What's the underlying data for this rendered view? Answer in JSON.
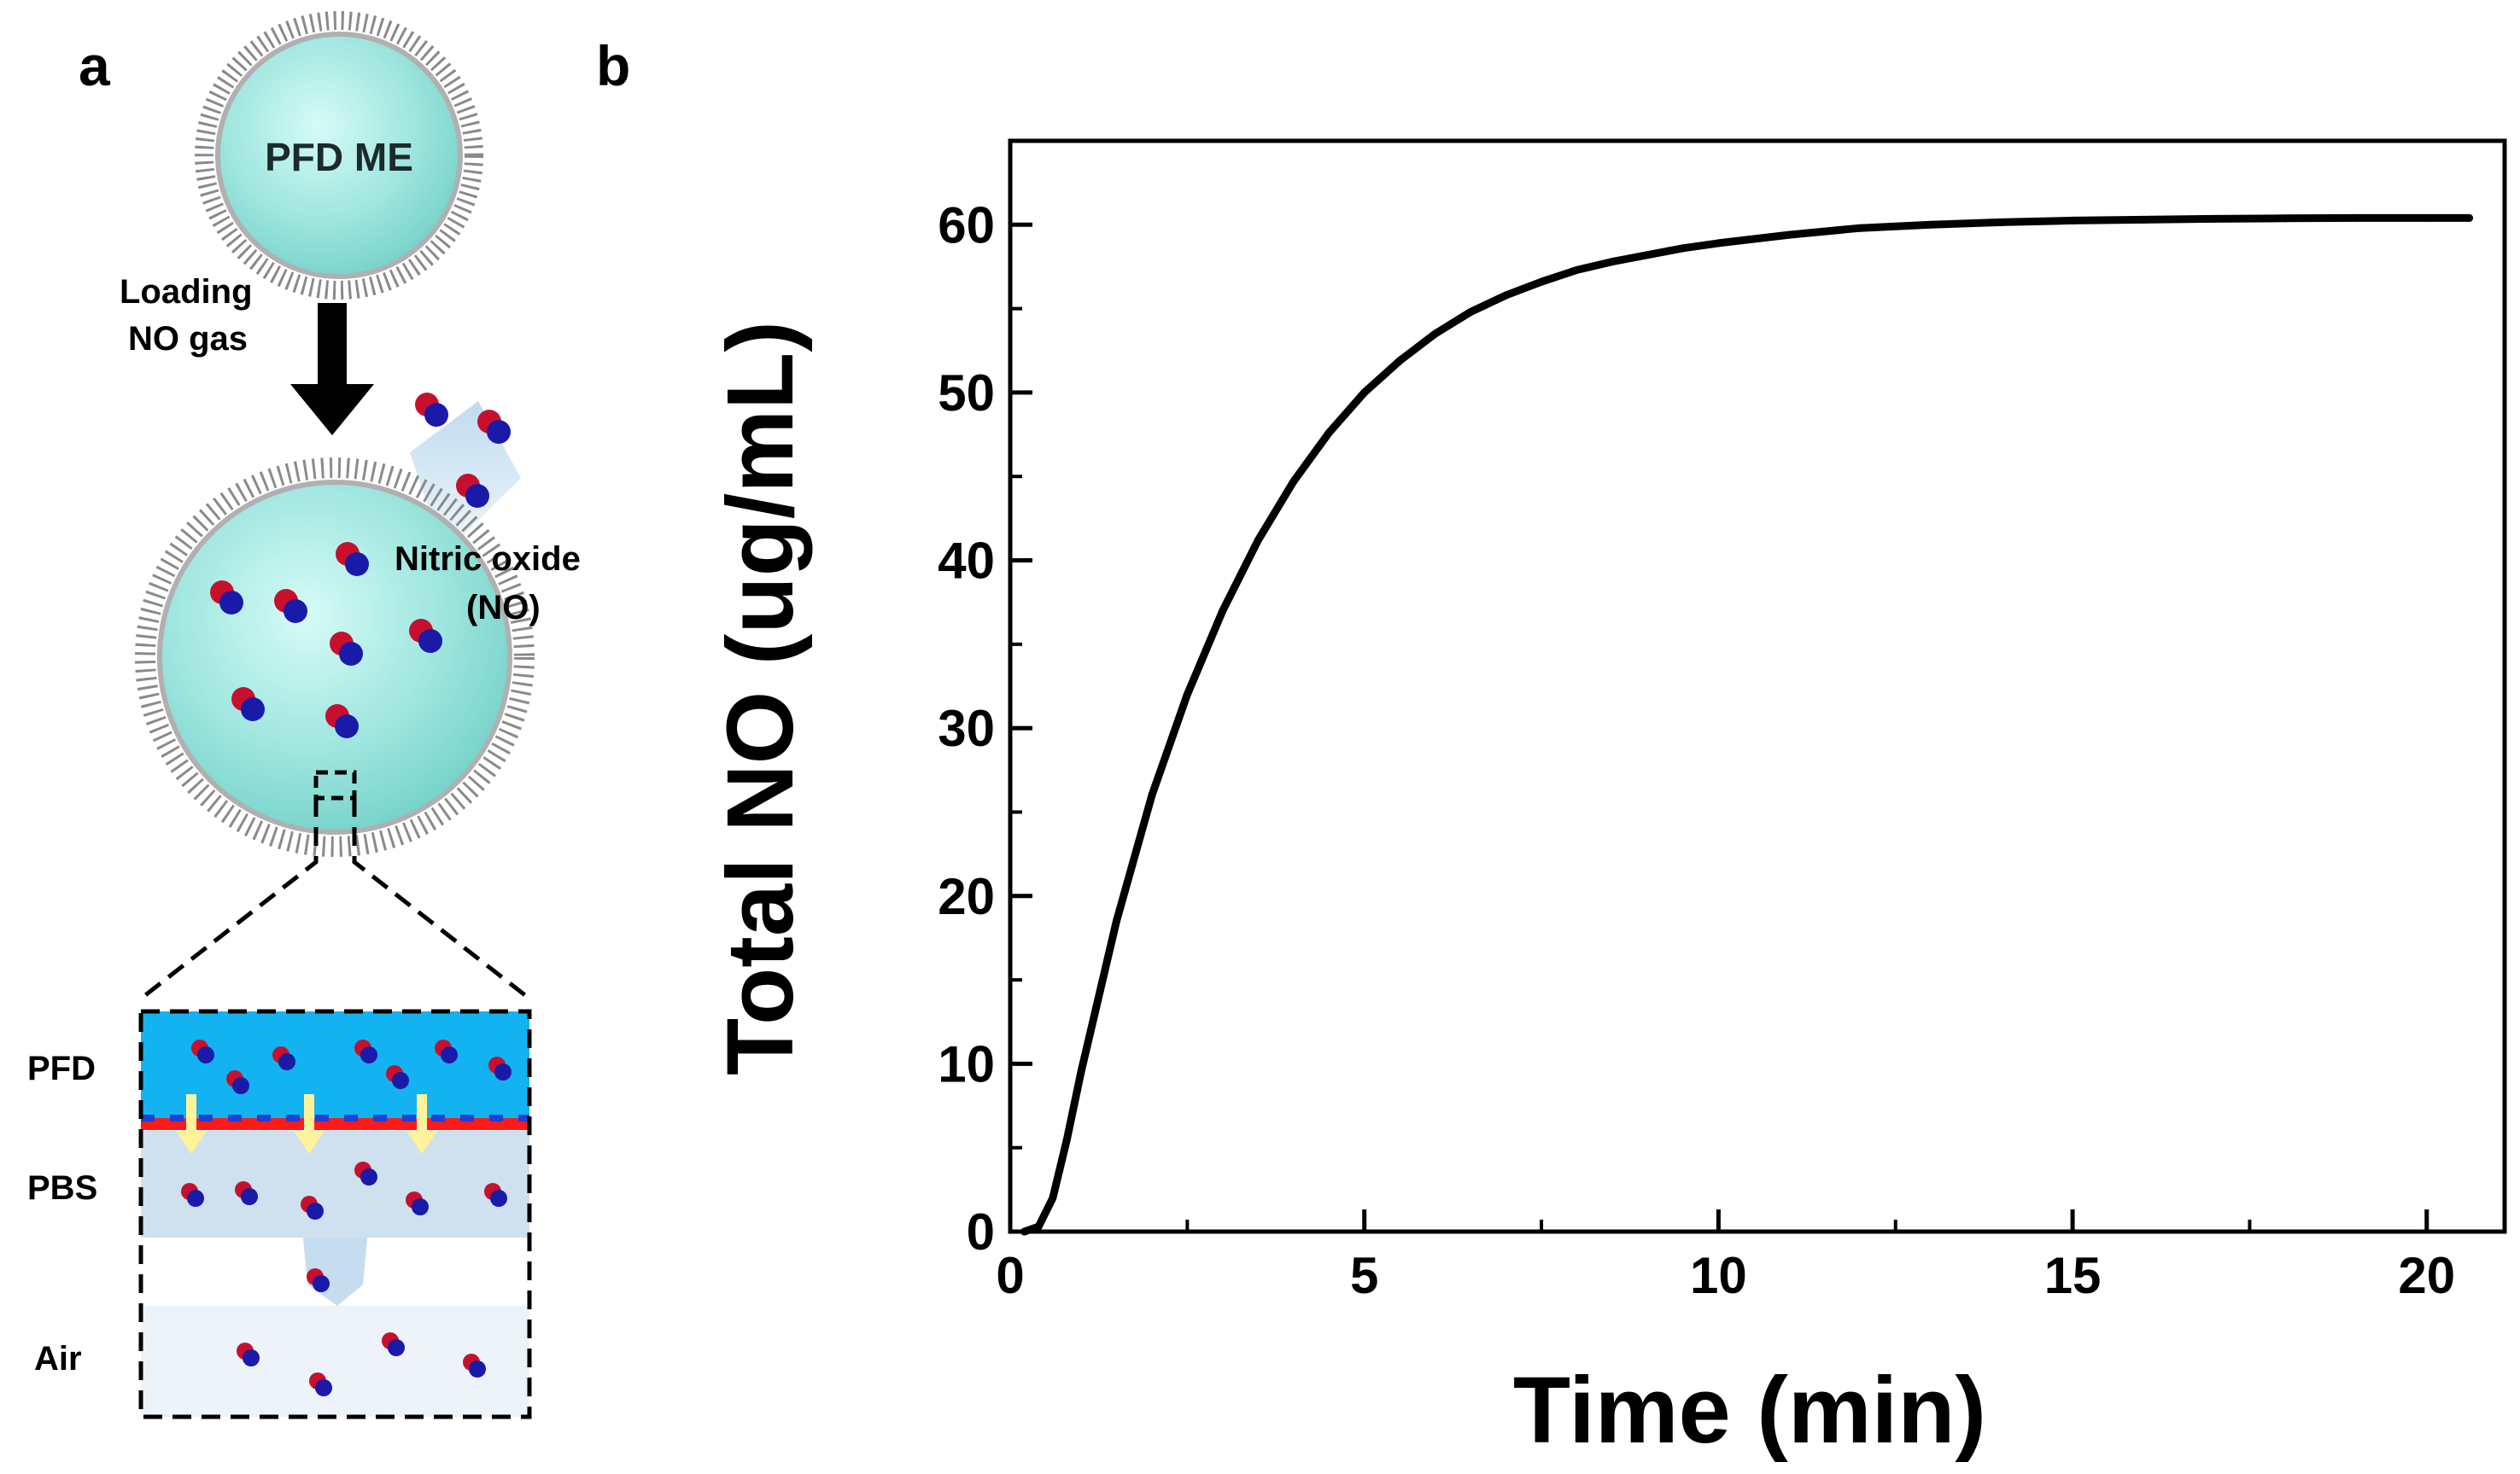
{
  "panel_a": {
    "panel_label": "a",
    "top_particle_label": "PFD ME",
    "loading_label_line1": "Loading",
    "loading_label_line2": "NO gas",
    "no_label_line1": "Nitric oxide",
    "no_label_line2": "(NO)",
    "layer_labels": [
      "PFD",
      "PBS",
      "Air"
    ],
    "colors": {
      "particle_fill": "#9fe6df",
      "pfd_layer": "#12b3f0",
      "pbs_layer": "#cfe0ef",
      "air_layer": "#eef3f9",
      "no_red": "#c8102e",
      "no_blue": "#1a1aa8",
      "interface_red": "#ff1a1a",
      "interface_blue": "#1f3fd6",
      "arrow_yellow": "#fff29a"
    }
  },
  "chart_data": {
    "panel_label": "b",
    "type": "line",
    "title": "",
    "xlabel": "Time (min)",
    "ylabel": "Total NO (ug/mL)",
    "xlim": [
      0,
      21.1
    ],
    "ylim": [
      0,
      65
    ],
    "xticks": [
      0,
      5,
      10,
      15,
      20
    ],
    "yticks": [
      0,
      10,
      20,
      30,
      40,
      50,
      60
    ],
    "grid": false,
    "legend": "none",
    "line_color": "#000000",
    "series": [
      {
        "x": [
          0.2,
          0.4,
          0.6,
          0.8,
          1.0,
          1.5,
          2.0,
          2.5,
          3.0,
          3.5,
          4.0,
          4.5,
          5.0,
          5.5,
          6.0,
          6.5,
          7.0,
          7.5,
          8.0,
          8.5,
          9.0,
          9.5,
          10.0,
          11.0,
          12.0,
          13.0,
          14.0,
          15.0,
          16.0,
          17.0,
          18.0,
          19.0,
          20.0,
          20.6
        ],
        "values": [
          0,
          0.3,
          2.0,
          5.5,
          9.5,
          18.5,
          26.0,
          32.0,
          37.0,
          41.2,
          44.7,
          47.6,
          50.0,
          51.9,
          53.5,
          54.8,
          55.8,
          56.6,
          57.3,
          57.8,
          58.2,
          58.6,
          58.9,
          59.4,
          59.8,
          60.0,
          60.15,
          60.25,
          60.3,
          60.35,
          60.38,
          60.4,
          60.4,
          60.4
        ]
      }
    ]
  }
}
